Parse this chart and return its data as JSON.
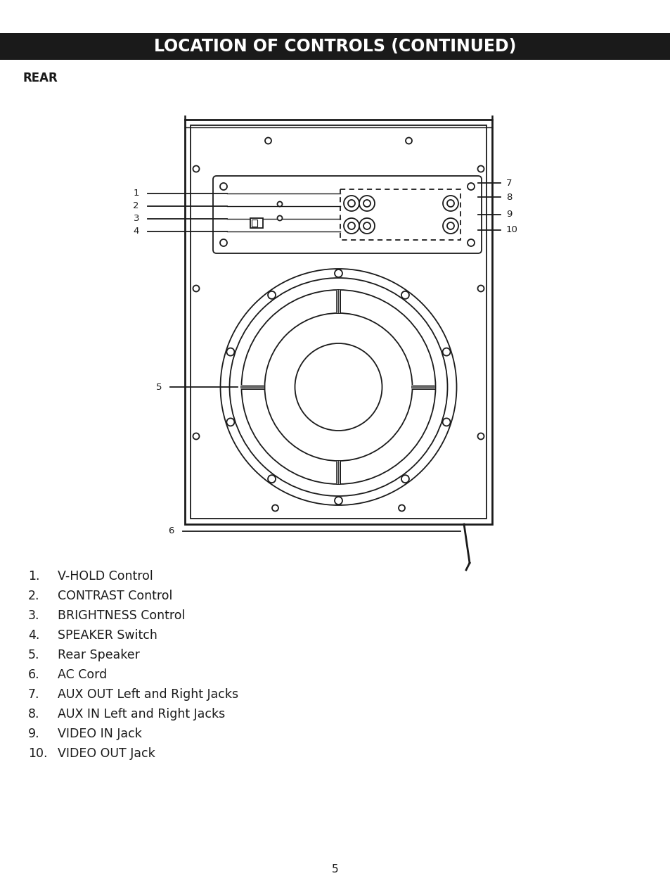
{
  "title": "LOCATION OF CONTROLS (CONTINUED)",
  "title_bg": "#1a1a1a",
  "title_color": "#ffffff",
  "title_fontsize": 17,
  "rear_label": "REAR",
  "page_number": "5",
  "items": [
    "V-HOLD Control",
    "CONTRAST Control",
    "BRIGHTNESS Control",
    "SPEAKER Switch",
    "Rear Speaker",
    "AC Cord",
    "AUX OUT Left and Right Jacks",
    "AUX IN Left and Right Jacks",
    "VIDEO IN Jack",
    "VIDEO OUT Jack"
  ],
  "bg_color": "#ffffff",
  "line_color": "#1a1a1a",
  "body_fontsize": 12.5
}
